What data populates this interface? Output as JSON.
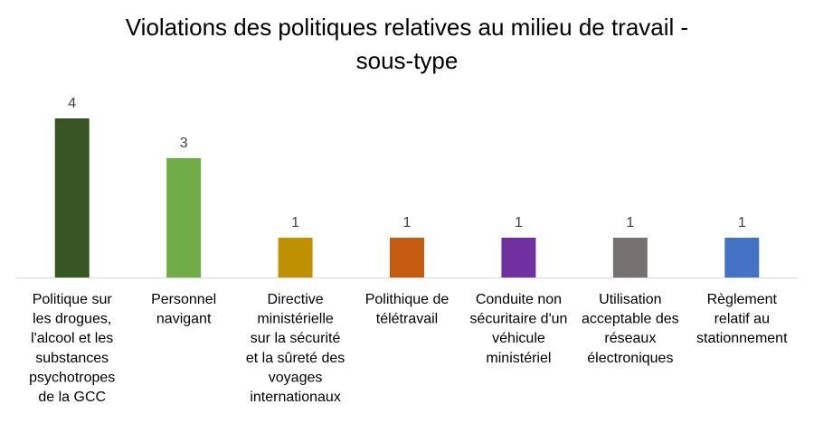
{
  "chart_data": {
    "type": "bar",
    "title_lines": [
      "Violations des politiques relatives au milieu de travail -",
      "sous-type"
    ],
    "categories": [
      [
        "Politique sur",
        "les drogues,",
        "l'alcool et les",
        "substances",
        "psychotropes",
        "de la GCC"
      ],
      [
        "Personnel",
        "navigant"
      ],
      [
        "Directive",
        "ministérielle",
        "sur la sécurité",
        "et la sûreté des",
        "voyages",
        "internationaux"
      ],
      [
        "Polithique de",
        "télétravail"
      ],
      [
        "Conduite non",
        "sécuritaire d'un",
        "véhicule",
        "ministériel"
      ],
      [
        "Utilisation",
        "acceptable des",
        "réseaux",
        "électroniques"
      ],
      [
        "Règlement",
        "relatif au",
        "stationnement"
      ]
    ],
    "values": [
      4,
      3,
      1,
      1,
      1,
      1,
      1
    ],
    "colors": [
      "#375623",
      "#70AD47",
      "#BF9000",
      "#C55A11",
      "#7030A0",
      "#767171",
      "#4472C4"
    ],
    "data_labels": true,
    "ylim": [
      0,
      4
    ],
    "grid": false,
    "legend": "none",
    "xlabel": "",
    "ylabel": ""
  }
}
